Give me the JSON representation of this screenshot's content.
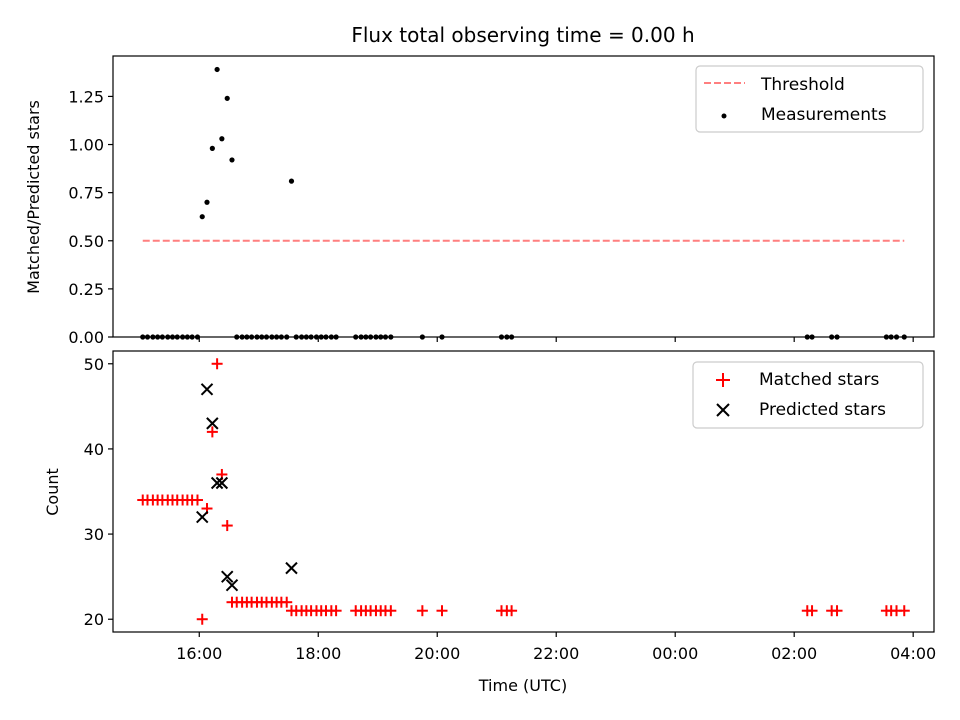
{
  "chart_data": {
    "type": "scatter",
    "title": "Flux total observing time = 0.00 h",
    "xlabel": "Time (UTC)",
    "x_tick_labels": [
      "16:00",
      "18:00",
      "20:00",
      "22:00",
      "00:00",
      "02:00",
      "04:00"
    ],
    "x_ticks_hours": [
      16,
      18,
      20,
      22,
      24,
      26,
      28
    ],
    "x_range_hours": [
      14.55,
      28.35
    ],
    "top_panel": {
      "ylabel": "Matched/Predicted stars",
      "ylim": [
        0,
        1.46
      ],
      "y_ticks": [
        0.0,
        0.25,
        0.5,
        0.75,
        1.0,
        1.25
      ],
      "y_tick_labels": [
        "0.00",
        "0.25",
        "0.50",
        "0.75",
        "1.00",
        "1.25"
      ],
      "legend": [
        "Threshold",
        "Measurements"
      ],
      "threshold": {
        "value": 0.5,
        "x_range_hours": [
          15.05,
          27.85
        ],
        "color": "#ff7f7f"
      },
      "measurements": {
        "color": "#000000",
        "points": [
          {
            "t": 16.05,
            "v": 0.625
          },
          {
            "t": 16.13,
            "v": 0.7
          },
          {
            "t": 16.22,
            "v": 0.98
          },
          {
            "t": 16.3,
            "v": 1.39
          },
          {
            "t": 16.38,
            "v": 1.03
          },
          {
            "t": 16.47,
            "v": 1.24
          },
          {
            "t": 16.55,
            "v": 0.92
          },
          {
            "t": 17.55,
            "v": 0.81
          },
          {
            "t": 15.05,
            "v": 0
          },
          {
            "t": 15.13,
            "v": 0
          },
          {
            "t": 15.22,
            "v": 0
          },
          {
            "t": 15.3,
            "v": 0
          },
          {
            "t": 15.38,
            "v": 0
          },
          {
            "t": 15.47,
            "v": 0
          },
          {
            "t": 15.55,
            "v": 0
          },
          {
            "t": 15.63,
            "v": 0
          },
          {
            "t": 15.72,
            "v": 0
          },
          {
            "t": 15.8,
            "v": 0
          },
          {
            "t": 15.88,
            "v": 0
          },
          {
            "t": 15.97,
            "v": 0
          },
          {
            "t": 16.63,
            "v": 0
          },
          {
            "t": 16.72,
            "v": 0
          },
          {
            "t": 16.8,
            "v": 0
          },
          {
            "t": 16.88,
            "v": 0
          },
          {
            "t": 16.97,
            "v": 0
          },
          {
            "t": 17.05,
            "v": 0
          },
          {
            "t": 17.13,
            "v": 0
          },
          {
            "t": 17.22,
            "v": 0
          },
          {
            "t": 17.3,
            "v": 0
          },
          {
            "t": 17.38,
            "v": 0
          },
          {
            "t": 17.47,
            "v": 0
          },
          {
            "t": 17.63,
            "v": 0
          },
          {
            "t": 17.72,
            "v": 0
          },
          {
            "t": 17.8,
            "v": 0
          },
          {
            "t": 17.88,
            "v": 0
          },
          {
            "t": 17.97,
            "v": 0
          },
          {
            "t": 18.05,
            "v": 0
          },
          {
            "t": 18.13,
            "v": 0
          },
          {
            "t": 18.22,
            "v": 0
          },
          {
            "t": 18.3,
            "v": 0
          },
          {
            "t": 18.63,
            "v": 0
          },
          {
            "t": 18.72,
            "v": 0
          },
          {
            "t": 18.8,
            "v": 0
          },
          {
            "t": 18.88,
            "v": 0
          },
          {
            "t": 18.97,
            "v": 0
          },
          {
            "t": 19.05,
            "v": 0
          },
          {
            "t": 19.13,
            "v": 0
          },
          {
            "t": 19.22,
            "v": 0
          },
          {
            "t": 19.75,
            "v": 0
          },
          {
            "t": 20.08,
            "v": 0
          },
          {
            "t": 21.08,
            "v": 0
          },
          {
            "t": 21.17,
            "v": 0
          },
          {
            "t": 21.25,
            "v": 0
          },
          {
            "t": 26.22,
            "v": 0
          },
          {
            "t": 26.3,
            "v": 0
          },
          {
            "t": 26.63,
            "v": 0
          },
          {
            "t": 26.72,
            "v": 0
          },
          {
            "t": 27.55,
            "v": 0
          },
          {
            "t": 27.63,
            "v": 0
          },
          {
            "t": 27.72,
            "v": 0
          },
          {
            "t": 27.85,
            "v": 0
          }
        ]
      }
    },
    "bottom_panel": {
      "ylabel": "Count",
      "ylim": [
        18.5,
        51.5
      ],
      "y_ticks": [
        20,
        30,
        40,
        50
      ],
      "y_tick_labels": [
        "20",
        "30",
        "40",
        "50"
      ],
      "legend": [
        "Matched stars",
        "Predicted stars"
      ],
      "matched": {
        "color": "#ff0000",
        "points": [
          {
            "t": 15.05,
            "v": 34
          },
          {
            "t": 15.13,
            "v": 34
          },
          {
            "t": 15.22,
            "v": 34
          },
          {
            "t": 15.3,
            "v": 34
          },
          {
            "t": 15.38,
            "v": 34
          },
          {
            "t": 15.47,
            "v": 34
          },
          {
            "t": 15.55,
            "v": 34
          },
          {
            "t": 15.63,
            "v": 34
          },
          {
            "t": 15.72,
            "v": 34
          },
          {
            "t": 15.8,
            "v": 34
          },
          {
            "t": 15.88,
            "v": 34
          },
          {
            "t": 15.97,
            "v": 34
          },
          {
            "t": 16.05,
            "v": 20
          },
          {
            "t": 16.13,
            "v": 33
          },
          {
            "t": 16.22,
            "v": 42
          },
          {
            "t": 16.3,
            "v": 50
          },
          {
            "t": 16.38,
            "v": 37
          },
          {
            "t": 16.47,
            "v": 31
          },
          {
            "t": 16.55,
            "v": 22
          },
          {
            "t": 16.63,
            "v": 22
          },
          {
            "t": 16.72,
            "v": 22
          },
          {
            "t": 16.8,
            "v": 22
          },
          {
            "t": 16.88,
            "v": 22
          },
          {
            "t": 16.97,
            "v": 22
          },
          {
            "t": 17.05,
            "v": 22
          },
          {
            "t": 17.13,
            "v": 22
          },
          {
            "t": 17.22,
            "v": 22
          },
          {
            "t": 17.3,
            "v": 22
          },
          {
            "t": 17.38,
            "v": 22
          },
          {
            "t": 17.47,
            "v": 22
          },
          {
            "t": 17.55,
            "v": 21
          },
          {
            "t": 17.63,
            "v": 21
          },
          {
            "t": 17.72,
            "v": 21
          },
          {
            "t": 17.8,
            "v": 21
          },
          {
            "t": 17.88,
            "v": 21
          },
          {
            "t": 17.97,
            "v": 21
          },
          {
            "t": 18.05,
            "v": 21
          },
          {
            "t": 18.13,
            "v": 21
          },
          {
            "t": 18.22,
            "v": 21
          },
          {
            "t": 18.3,
            "v": 21
          },
          {
            "t": 18.63,
            "v": 21
          },
          {
            "t": 18.72,
            "v": 21
          },
          {
            "t": 18.8,
            "v": 21
          },
          {
            "t": 18.88,
            "v": 21
          },
          {
            "t": 18.97,
            "v": 21
          },
          {
            "t": 19.05,
            "v": 21
          },
          {
            "t": 19.13,
            "v": 21
          },
          {
            "t": 19.22,
            "v": 21
          },
          {
            "t": 19.75,
            "v": 21
          },
          {
            "t": 20.08,
            "v": 21
          },
          {
            "t": 21.08,
            "v": 21
          },
          {
            "t": 21.17,
            "v": 21
          },
          {
            "t": 21.25,
            "v": 21
          },
          {
            "t": 26.22,
            "v": 21
          },
          {
            "t": 26.3,
            "v": 21
          },
          {
            "t": 26.63,
            "v": 21
          },
          {
            "t": 26.72,
            "v": 21
          },
          {
            "t": 27.55,
            "v": 21
          },
          {
            "t": 27.63,
            "v": 21
          },
          {
            "t": 27.72,
            "v": 21
          },
          {
            "t": 27.85,
            "v": 21
          }
        ]
      },
      "predicted": {
        "color": "#000000",
        "points": [
          {
            "t": 16.05,
            "v": 32
          },
          {
            "t": 16.13,
            "v": 47
          },
          {
            "t": 16.22,
            "v": 43
          },
          {
            "t": 16.3,
            "v": 36
          },
          {
            "t": 16.38,
            "v": 36
          },
          {
            "t": 16.47,
            "v": 25
          },
          {
            "t": 16.55,
            "v": 24
          },
          {
            "t": 17.55,
            "v": 26
          }
        ]
      }
    }
  }
}
